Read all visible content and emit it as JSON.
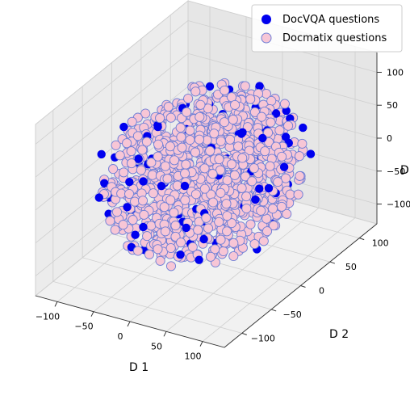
{
  "chart_data": {
    "type": "scatter",
    "projection": "3d",
    "xlabel": "D 1",
    "ylabel": "D 2",
    "zlabel": "D",
    "xlim": [
      -130,
      130
    ],
    "ylim": [
      -130,
      130
    ],
    "zlim": [
      -130,
      130
    ],
    "x_ticks": [
      -100,
      -50,
      0,
      50,
      100
    ],
    "y_ticks": [
      -100,
      -50,
      0,
      50,
      100
    ],
    "z_ticks": [
      -100,
      -50,
      0,
      50,
      100
    ],
    "grid": true,
    "legend_position": "top-right",
    "colors": {
      "docvqa": "#0000ee",
      "docmatix_fill": "#f7c6d6",
      "docmatix_edge": "#6f7fd6"
    },
    "series": [
      {
        "name": "DocVQA questions",
        "marker": "filled-circle",
        "distribution": "roughly spherical cloud, radius ~120",
        "sample_count": 90
      },
      {
        "name": "Docmatix questions",
        "marker": "edged-circle",
        "distribution": "roughly spherical cloud, radius ~115",
        "sample_count": 1100
      }
    ]
  }
}
